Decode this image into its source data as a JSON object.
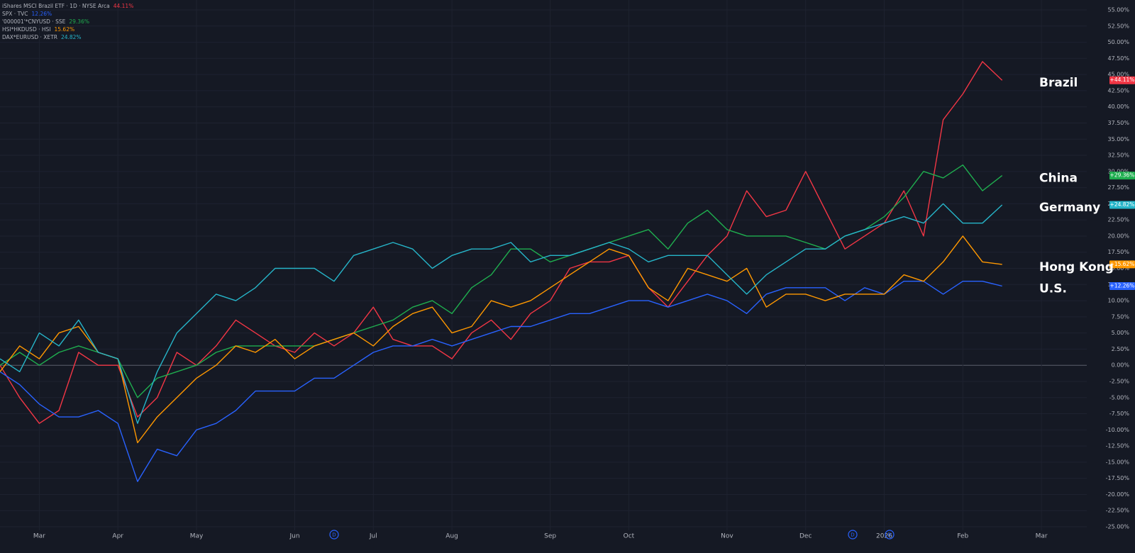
{
  "chart_data": {
    "type": "line",
    "categories": [
      null,
      null,
      "Mar",
      null,
      null,
      null,
      "Apr",
      null,
      null,
      null,
      "May",
      null,
      null,
      null,
      null,
      "Jun",
      null,
      null,
      null,
      "Jul",
      null,
      null,
      null,
      "Aug",
      null,
      null,
      null,
      null,
      "Sep",
      null,
      null,
      null,
      "Oct",
      null,
      null,
      null,
      null,
      "Nov",
      null,
      null,
      null,
      "Dec",
      null,
      null,
      null,
      "2026",
      null,
      null,
      null,
      "Feb",
      null,
      null,
      null,
      "Mar"
    ],
    "series": [
      {
        "name": "iShares MSCI Brazil ETF · 1D · NYSE Arca",
        "change": "44.11%",
        "label": "Brazil",
        "end_label": "+44.11%",
        "color": "#f23645",
        "values": [
          0,
          -5,
          -9,
          -7,
          2,
          0,
          0,
          -8,
          -5,
          2,
          0,
          3,
          7,
          5,
          3,
          2,
          5,
          3,
          5,
          9,
          4,
          3,
          3,
          1,
          5,
          7,
          4,
          8,
          10,
          15,
          16,
          16,
          17,
          12,
          9,
          13,
          17,
          20,
          27,
          23,
          24,
          30,
          24,
          18,
          20,
          22,
          27,
          20,
          38,
          42,
          47,
          44.11,
          null,
          null
        ]
      },
      {
        "name": "SPX · TVC",
        "change": "12.26%",
        "label": "U.S.",
        "end_label": "+12.26%",
        "color": "#2962ff",
        "values": [
          -1,
          -3,
          -6,
          -8,
          -8,
          -7,
          -9,
          -18,
          -13,
          -14,
          -10,
          -9,
          -7,
          -4,
          -4,
          -4,
          -2,
          -2,
          0,
          2,
          3,
          3,
          4,
          3,
          4,
          5,
          6,
          6,
          7,
          8,
          8,
          9,
          10,
          10,
          9,
          10,
          11,
          10,
          8,
          11,
          12,
          12,
          12,
          10,
          12,
          11,
          13,
          13,
          11,
          13,
          13,
          12.26,
          null,
          null
        ]
      },
      {
        "name": "'000001'*CNYUSD · SSE",
        "change": "29.36%",
        "label": "China",
        "end_label": "+29.36%",
        "color": "#1fae4f",
        "values": [
          0,
          2,
          0,
          2,
          3,
          2,
          1,
          -5,
          -2,
          -1,
          0,
          2,
          3,
          3,
          3,
          3,
          3,
          4,
          5,
          6,
          7,
          9,
          10,
          8,
          12,
          14,
          18,
          18,
          16,
          17,
          18,
          19,
          20,
          21,
          18,
          22,
          24,
          21,
          20,
          20,
          20,
          19,
          18,
          20,
          21,
          23,
          26,
          30,
          29,
          31,
          27,
          29.36,
          null,
          null
        ]
      },
      {
        "name": "HSI*HKDUSD · HSI",
        "change": "15.62%",
        "label": "Hong Kong",
        "end_label": "+15.62%",
        "color": "#ff9800",
        "values": [
          -1,
          3,
          1,
          5,
          6,
          2,
          1,
          -12,
          -8,
          -5,
          -2,
          0,
          3,
          2,
          4,
          1,
          3,
          4,
          5,
          3,
          6,
          8,
          9,
          5,
          6,
          10,
          9,
          10,
          12,
          14,
          16,
          18,
          17,
          12,
          10,
          15,
          14,
          13,
          15,
          9,
          11,
          11,
          10,
          11,
          11,
          11,
          14,
          13,
          16,
          20,
          16,
          15.62,
          null,
          null
        ]
      },
      {
        "name": "DAX*EURUSD · XETR",
        "change": "24.82%",
        "label": "Germany",
        "end_label": "+24.82%",
        "color": "#26b5c9",
        "values": [
          1,
          -1,
          5,
          3,
          7,
          2,
          1,
          -9,
          -1,
          5,
          8,
          11,
          10,
          12,
          15,
          15,
          15,
          13,
          17,
          18,
          19,
          18,
          15,
          17,
          18,
          18,
          19,
          16,
          17,
          17,
          18,
          19,
          18,
          16,
          17,
          17,
          17,
          14,
          11,
          14,
          16,
          18,
          18,
          20,
          21,
          22,
          23,
          22,
          25,
          22,
          22,
          24.82,
          null,
          null
        ]
      }
    ],
    "ylim": [
      -25,
      55
    ],
    "yticks": [
      {
        "value": -25,
        "label": "-25.00%"
      },
      {
        "value": -22.5,
        "label": "-22.50%"
      },
      {
        "value": -20,
        "label": "-20.00%"
      },
      {
        "value": -17.5,
        "label": "-17.50%"
      },
      {
        "value": -15,
        "label": "-15.00%"
      },
      {
        "value": -12.5,
        "label": "-12.50%"
      },
      {
        "value": -10,
        "label": "-10.00%"
      },
      {
        "value": -7.5,
        "label": "-7.50%"
      },
      {
        "value": -5,
        "label": "-5.00%"
      },
      {
        "value": -2.5,
        "label": "-2.50%"
      },
      {
        "value": 0,
        "label": "0.00%"
      },
      {
        "value": 2.5,
        "label": "2.50%"
      },
      {
        "value": 5,
        "label": "5.00%"
      },
      {
        "value": 7.5,
        "label": "7.50%"
      },
      {
        "value": 10,
        "label": "10.00%"
      },
      {
        "value": 12.5,
        "label": "12.50%"
      },
      {
        "value": 15,
        "label": "15.00%"
      },
      {
        "value": 17.5,
        "label": "17.50%"
      },
      {
        "value": 20,
        "label": "20.00%"
      },
      {
        "value": 22.5,
        "label": "22.50%"
      },
      {
        "value": 25,
        "label": "25.00%"
      },
      {
        "value": 27.5,
        "label": "27.50%"
      },
      {
        "value": 30,
        "label": "30.00%"
      },
      {
        "value": 32.5,
        "label": "32.50%"
      },
      {
        "value": 35,
        "label": "35.00%"
      },
      {
        "value": 37.5,
        "label": "37.50%"
      },
      {
        "value": 40,
        "label": "40.00%"
      },
      {
        "value": 42.5,
        "label": "42.50%"
      },
      {
        "value": 45,
        "label": "45.00%"
      },
      {
        "value": 47.5,
        "label": "47.50%"
      },
      {
        "value": 50,
        "label": "50.00%"
      },
      {
        "value": 52.5,
        "label": "52.50%"
      },
      {
        "value": 55,
        "label": "55.00%"
      }
    ],
    "grid": true,
    "events": [
      "D",
      "D",
      "D"
    ]
  }
}
